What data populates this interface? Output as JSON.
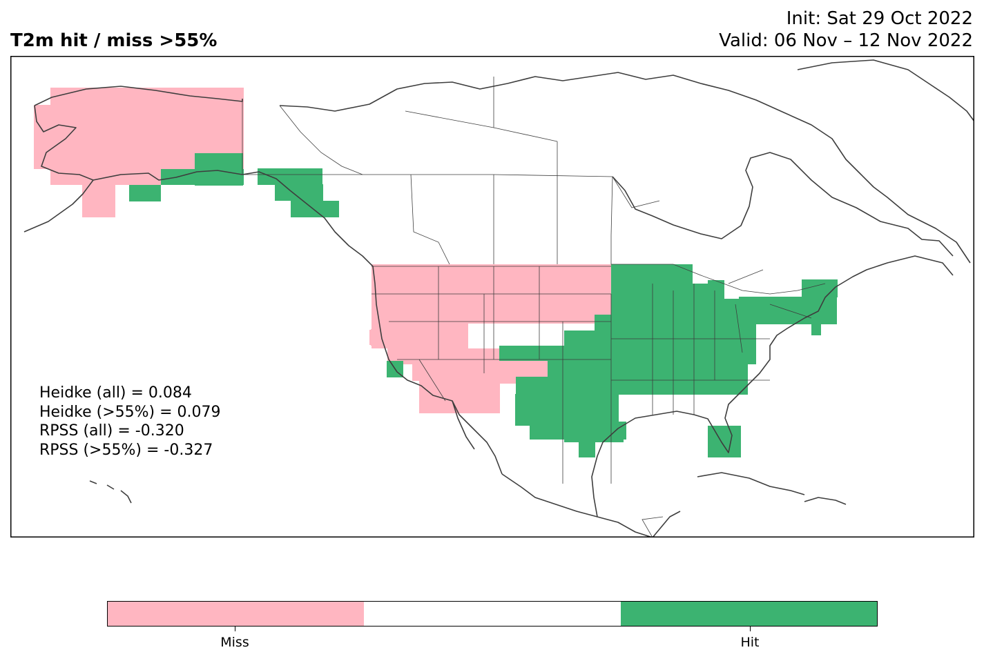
{
  "title": "T2m hit / miss  >55%",
  "init": "Init: Sat 29 Oct 2022",
  "valid": "Valid: 06 Nov – 12 Nov 2022",
  "stats": [
    "Heidke (all) = 0.084",
    "Heidke (>55%) = 0.079",
    "RPSS (all) = -0.320",
    "RPSS (>55%) = -0.327"
  ],
  "colors": {
    "miss": "#ffb6c1",
    "neutral": "#ffffff",
    "hit": "#3cb371",
    "coast": "#3d3d3d"
  },
  "colorbar": {
    "labels": [
      "Miss",
      "Hit"
    ]
  },
  "legend": {
    "miss": "Miss",
    "hit": "Hit"
  }
}
